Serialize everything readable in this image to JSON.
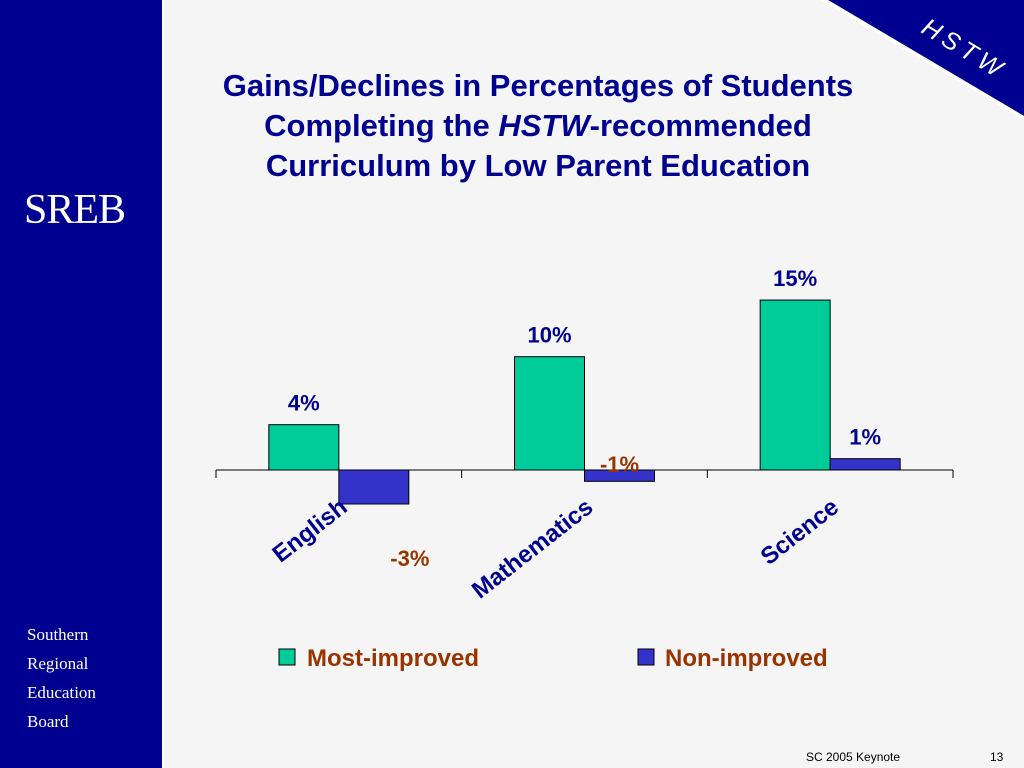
{
  "sidebar": {
    "logo_text": "SREB",
    "org_lines": [
      "Southern",
      "Regional",
      "Education",
      "Board"
    ]
  },
  "badge": {
    "text": "HSTW"
  },
  "title": {
    "line1": "Gains/Declines in Percentages of Students",
    "line2_pre": "Completing the ",
    "line2_em": "HSTW",
    "line2_post": "-recommended",
    "line3": "Curriculum by Low Parent Education"
  },
  "chart_data": {
    "type": "bar",
    "title": "Gains/Declines in Percentages of Students Completing the HSTW-recommended Curriculum by Low Parent Education",
    "categories": [
      "English",
      "Mathematics",
      "Science"
    ],
    "series": [
      {
        "name": "Most-improved",
        "values": [
          4,
          10,
          15
        ],
        "labels": [
          "4%",
          "10%",
          "15%"
        ],
        "color": "#00cc99"
      },
      {
        "name": "Non-improved",
        "values": [
          -3,
          -1,
          1
        ],
        "labels": [
          "-3%",
          "-1%",
          "1%"
        ],
        "color": "#3333cc"
      }
    ],
    "ylim": [
      -3,
      15
    ],
    "grid": false,
    "legend_position": "bottom",
    "positive_label_color": "#000090",
    "negative_label_color": "#993300"
  },
  "footer": {
    "label": "SC 2005 Keynote",
    "page": "13"
  },
  "colors": {
    "sidebar": "#000090",
    "accent": "#000090",
    "legend_text": "#993300"
  }
}
